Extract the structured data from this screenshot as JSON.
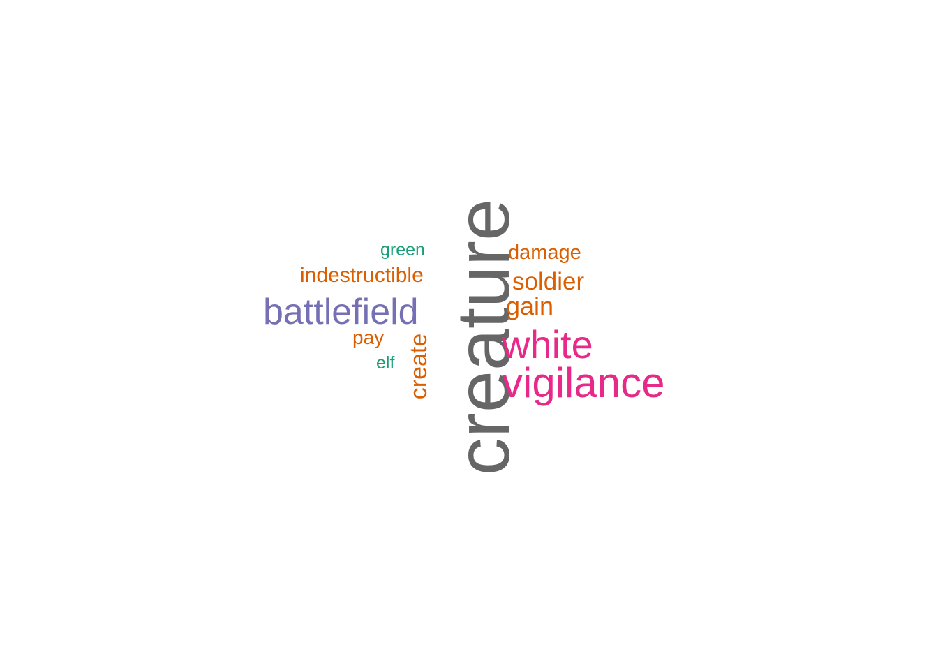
{
  "cloud": {
    "words": {
      "creature": {
        "text": "creature",
        "color": "#666666"
      },
      "battlefield": {
        "text": "battlefield",
        "color": "#7570B3"
      },
      "white": {
        "text": "white",
        "color": "#E7298A"
      },
      "vigilance": {
        "text": "vigilance",
        "color": "#E7298A"
      },
      "soldier": {
        "text": "soldier",
        "color": "#D95F02"
      },
      "gain": {
        "text": "gain",
        "color": "#D95F02"
      },
      "damage": {
        "text": "damage",
        "color": "#D95F02"
      },
      "indestructible": {
        "text": "indestructible",
        "color": "#D95F02"
      },
      "green": {
        "text": "green",
        "color": "#1B9E77"
      },
      "pay": {
        "text": "pay",
        "color": "#D95F02"
      },
      "elf": {
        "text": "elf",
        "color": "#1B9E77"
      },
      "create": {
        "text": "create",
        "color": "#D95F02"
      }
    }
  }
}
